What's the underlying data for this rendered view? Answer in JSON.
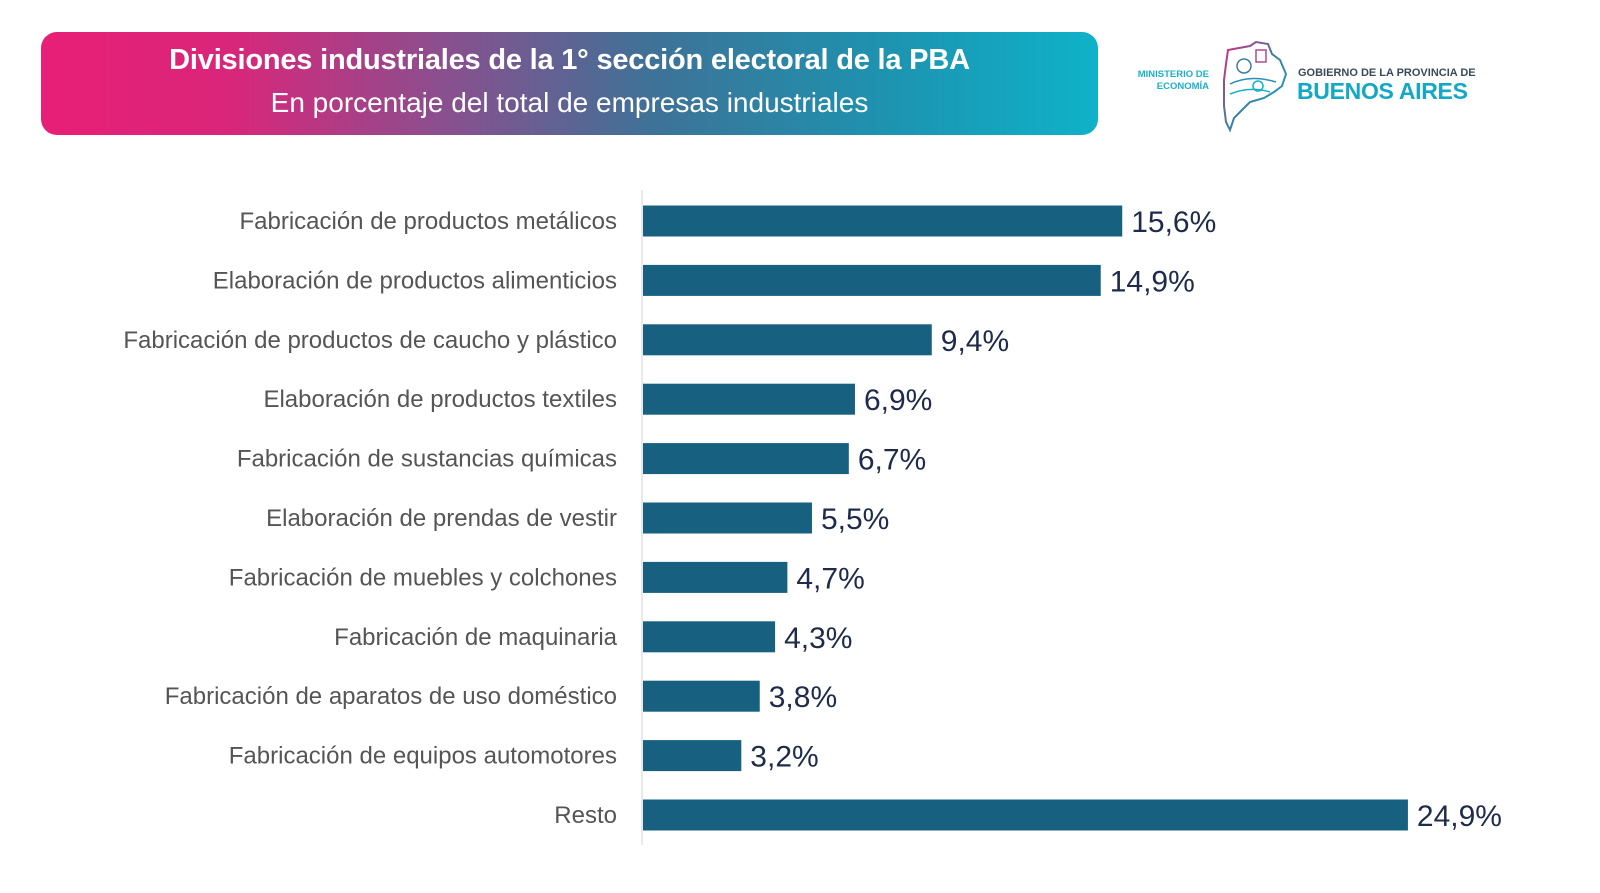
{
  "header": {
    "title": "Divisiones industriales de la 1° sección electoral de la PBA",
    "subtitle": "En porcentaje del total de empresas industriales"
  },
  "logo": {
    "ministry_line1": "MINISTERIO DE",
    "ministry_line2": "ECONOMÍA",
    "gov_line": "GOBIERNO DE LA PROVINCIA DE",
    "province": "BUENOS AIRES"
  },
  "colors": {
    "bar": "#17607f",
    "banner_start": "#e81f76",
    "banner_end": "#0fb2c9",
    "value_text": "#1e2b4a",
    "category_text": "#555555"
  },
  "chart_data": {
    "type": "bar",
    "orientation": "horizontal",
    "title": "Divisiones industriales de la 1° sección electoral de la PBA",
    "subtitle": "En porcentaje del total de empresas industriales",
    "xlabel": "",
    "ylabel": "",
    "unit": "%",
    "xlim": [
      0,
      25
    ],
    "grid": false,
    "legend": "none",
    "categories": [
      "Fabricación de productos metálicos",
      "Elaboración de productos alimenticios",
      "Fabricación de productos de caucho y plástico",
      "Elaboración de productos textiles",
      "Fabricación de sustancias químicas",
      "Elaboración de prendas de vestir",
      "Fabricación de muebles y colchones",
      "Fabricación de maquinaria",
      "Fabricación de aparatos de uso doméstico",
      "Fabricación de equipos automotores",
      "Resto"
    ],
    "values": [
      15.6,
      14.9,
      9.4,
      6.9,
      6.7,
      5.5,
      4.7,
      4.3,
      3.8,
      3.2,
      24.9
    ],
    "data_labels": [
      "15,6%",
      "14,9%",
      "9,4%",
      "6,9%",
      "6,7%",
      "5,5%",
      "4,7%",
      "4,3%",
      "3,8%",
      "3,2%",
      "24,9%"
    ]
  }
}
